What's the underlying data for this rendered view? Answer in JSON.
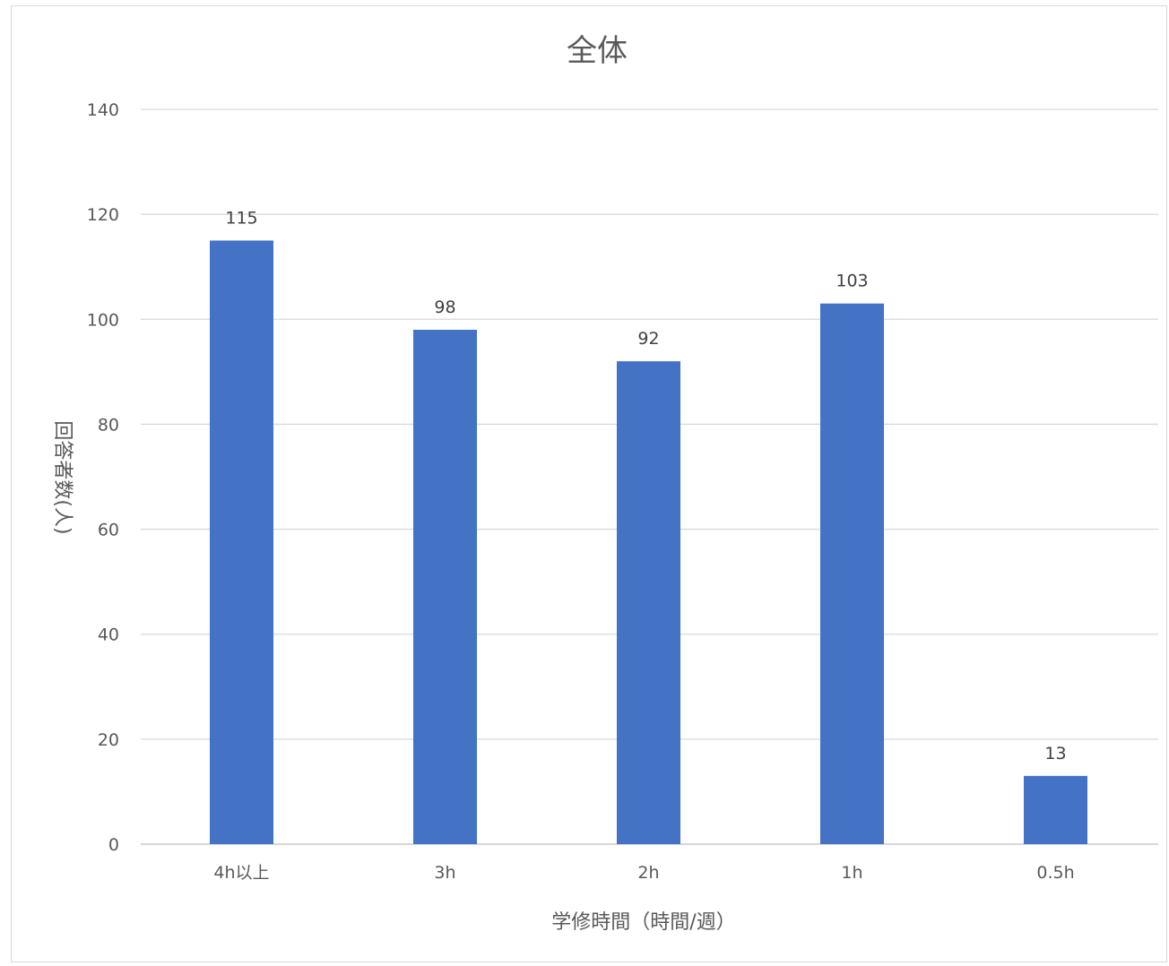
{
  "chart_data": {
    "type": "bar",
    "title": "全体",
    "xlabel": "学修時間（時間/週）",
    "ylabel": "回答者数(人)",
    "categories": [
      "4h以上",
      "3h",
      "2h",
      "1h",
      "0.5h"
    ],
    "values": [
      115,
      98,
      92,
      103,
      13
    ],
    "data_labels": [
      "115",
      "98",
      "92",
      "103",
      "13"
    ],
    "ylim": [
      0,
      140
    ],
    "yticks": [
      0,
      20,
      40,
      60,
      80,
      100,
      120,
      140
    ],
    "grid": true,
    "legend": "none",
    "bar_color": "#4472C4"
  }
}
